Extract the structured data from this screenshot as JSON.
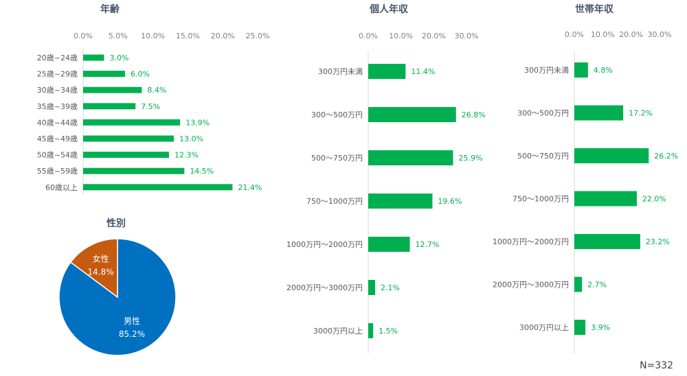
{
  "note": "N=332",
  "bar_color": "#00b050",
  "chart_data": [
    {
      "type": "bar",
      "orientation": "horizontal",
      "title": "年齢",
      "xlim": [
        0,
        25
      ],
      "ticks": [
        "0.0%",
        "5.0%",
        "10.0%",
        "15.0%",
        "20.0%",
        "25.0%"
      ],
      "categories": [
        "20歳~24歳",
        "25歳~29歳",
        "30歳~34歳",
        "35歳~39歳",
        "40歳~44歳",
        "45歳~49歳",
        "50歳~54歳",
        "55歳~59歳",
        "60歳以上"
      ],
      "values": [
        3.0,
        6.0,
        8.4,
        7.5,
        13.9,
        13.0,
        12.3,
        14.5,
        21.4
      ],
      "labels": [
        "3.0%",
        "6.0%",
        "8.4%",
        "7.5%",
        "13.9%",
        "13.0%",
        "12.3%",
        "14.5%",
        "21.4%"
      ]
    },
    {
      "type": "pie",
      "title": "性別",
      "slices": [
        {
          "name": "男性",
          "value": 85.2,
          "label": "85.2%",
          "color": "#0070c0"
        },
        {
          "name": "女性",
          "value": 14.8,
          "label": "14.8%",
          "color": "#c55a11"
        }
      ]
    },
    {
      "type": "bar",
      "orientation": "horizontal",
      "title": "個人年収",
      "xlim": [
        0,
        30
      ],
      "ticks": [
        "0.0%",
        "10.0%",
        "20.0%",
        "30.0%"
      ],
      "categories": [
        "300万円未満",
        "300～500万円",
        "500～750万円",
        "750～1000万円",
        "1000万円～2000万円",
        "2000万円～3000万円",
        "3000万円以上"
      ],
      "values": [
        11.4,
        26.8,
        25.9,
        19.6,
        12.7,
        2.1,
        1.5
      ],
      "labels": [
        "11.4%",
        "26.8%",
        "25.9%",
        "19.6%",
        "12.7%",
        "2.1%",
        "1.5%"
      ]
    },
    {
      "type": "bar",
      "orientation": "horizontal",
      "title": "世帯年収",
      "xlim": [
        0,
        30
      ],
      "ticks": [
        "0.0%",
        "10.0%",
        "20.0%",
        "30.0%"
      ],
      "categories": [
        "300万円未満",
        "300～500万円",
        "500～750万円",
        "750～1000万円",
        "1000万円～2000万円",
        "2000万円～3000万円",
        "3000万円以上"
      ],
      "values": [
        4.8,
        17.2,
        26.2,
        22.0,
        23.2,
        2.7,
        3.9
      ],
      "labels": [
        "4.8%",
        "17.2%",
        "26.2%",
        "22.0%",
        "23.2%",
        "2.7%",
        "3.9%"
      ]
    }
  ]
}
